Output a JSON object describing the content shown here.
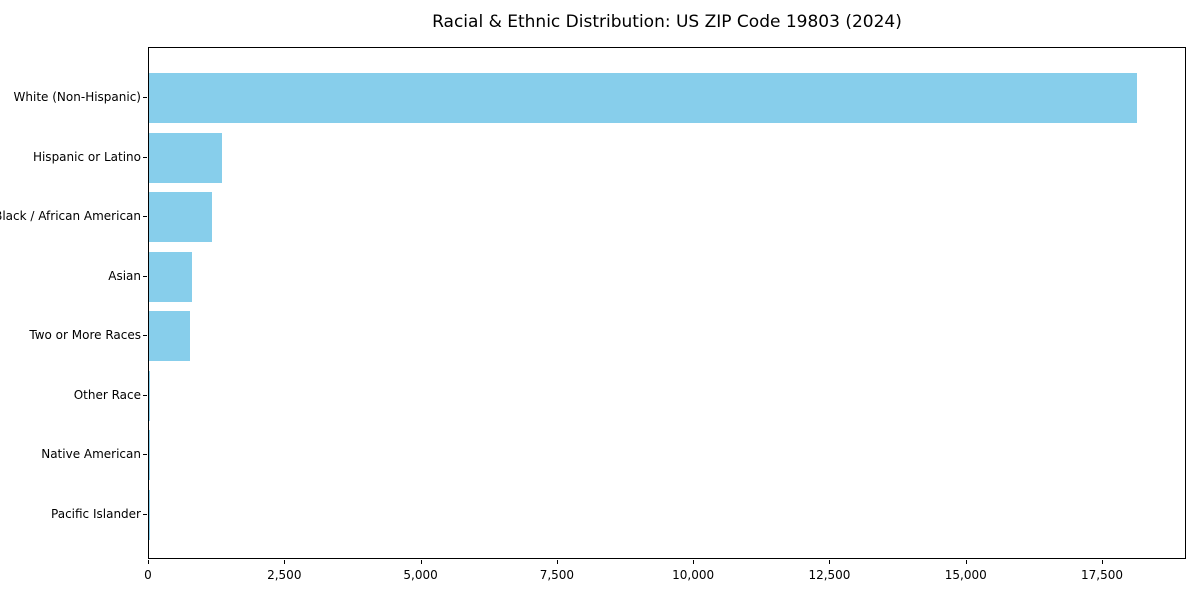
{
  "chart_data": {
    "type": "bar",
    "orientation": "horizontal",
    "title": "Racial & Ethnic Distribution: US ZIP Code 19803 (2024)",
    "categories": [
      "White (Non-Hispanic)",
      "Hispanic or Latino",
      "Black / African American",
      "Asian",
      "Two or More Races",
      "Other Race",
      "Native American",
      "Pacific Islander"
    ],
    "values": [
      18130,
      1340,
      1155,
      790,
      750,
      25,
      10,
      5
    ],
    "xlabel": "",
    "ylabel": "",
    "xlim": [
      0,
      19040
    ],
    "x_ticks": [
      0,
      2500,
      5000,
      7500,
      10000,
      12500,
      15000,
      17500
    ],
    "x_tick_labels": [
      "0",
      "2,500",
      "5,000",
      "7,500",
      "10,000",
      "12,500",
      "15,000",
      "17,500"
    ],
    "bar_color": "#87CEEB",
    "grid": false,
    "legend": null
  }
}
